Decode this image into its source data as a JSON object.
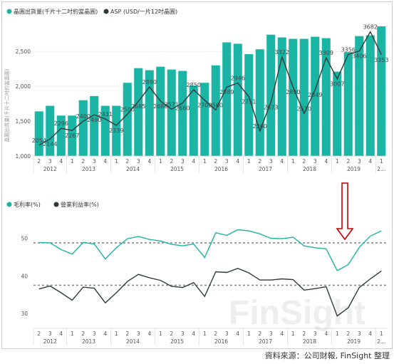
{
  "colors": {
    "bar": "#1bb5a5",
    "asp_line": "#2f3b3b",
    "gross": "#1bb5a5",
    "operating": "#2f3b3b",
    "ref_line": "#888888",
    "arrow": "#cc0000"
  },
  "quarters": [
    "2",
    "3",
    "4",
    "1",
    "2",
    "3",
    "4",
    "1",
    "2",
    "3",
    "4",
    "1",
    "2",
    "3",
    "4",
    "1",
    "2",
    "3",
    "4",
    "1",
    "2",
    "3",
    "4",
    "1",
    "2",
    "3",
    "4",
    "1",
    "2",
    "3",
    "4",
    "1"
  ],
  "years": [
    {
      "label": "2012",
      "start": 0,
      "end": 2
    },
    {
      "label": "2013",
      "start": 3,
      "end": 6
    },
    {
      "label": "2014",
      "start": 7,
      "end": 10
    },
    {
      "label": "2015",
      "start": 11,
      "end": 14
    },
    {
      "label": "2016",
      "start": 15,
      "end": 18
    },
    {
      "label": "2017",
      "start": 19,
      "end": 22
    },
    {
      "label": "2018",
      "start": 23,
      "end": 26
    },
    {
      "label": "2019",
      "start": 27,
      "end": 30
    },
    {
      "label": "2...",
      "start": 31,
      "end": 31
    }
  ],
  "watermark": "FinSight",
  "source_text": "資料來源：公司財報, FinSight 整理",
  "chart_data": [
    {
      "type": "bar",
      "legend": [
        "晶圓出貨量(千片十二吋約當晶圓)",
        "ASP (USD/一片12吋晶圓)"
      ],
      "ylabel": "晶圓出貨量(千片十二吋約當晶圓)",
      "ylim": [
        1000,
        2900
      ],
      "yticks": [
        1000,
        1500,
        2000,
        2500
      ],
      "ytick_labels": [
        "1,000",
        "1,500",
        "2,000",
        "2,500"
      ],
      "bar_values": [
        1640,
        1720,
        1580,
        1580,
        1800,
        1860,
        1720,
        1720,
        2050,
        2260,
        2230,
        2280,
        2240,
        2220,
        2010,
        2050,
        2300,
        2630,
        2610,
        2460,
        2530,
        2740,
        2700,
        2680,
        2680,
        2710,
        2690,
        2210,
        2490,
        2720,
        2730,
        2860
      ],
      "asp_values": [
        2054,
        2144,
        2296,
        2267,
        2400,
        2490,
        2431,
        2339,
        2500,
        2685,
        2890,
        2688,
        2571,
        2660,
        2850,
        2700,
        2560,
        2889,
        2946,
        2751,
        2260,
        2673,
        3322,
        2890,
        2510,
        2849,
        3309,
        3007,
        3356,
        3406,
        3682,
        3353
      ],
      "asp_labels": [
        "2054",
        "2144",
        "2296",
        "2267",
        "2400",
        "2490",
        "2431",
        "2339",
        "2500",
        "2685",
        "2890",
        "2688",
        "2571",
        "2660",
        "2850",
        "2700",
        "2560",
        "2889",
        "2946",
        "2751",
        "2260",
        "2673",
        "3322",
        "2890",
        "2510",
        "2849",
        "3309",
        "3007",
        "3356",
        "3406",
        "3682",
        "3353"
      ]
    },
    {
      "type": "line",
      "legend": [
        "毛利率(%)",
        "營業利益率(%)"
      ],
      "ylim": [
        26,
        56
      ],
      "yticks": [
        30,
        40,
        50
      ],
      "ytick_labels": [
        "30",
        "40",
        "50"
      ],
      "ref_lines": [
        48.8,
        37.5
      ],
      "series": [
        {
          "name": "毛利率(%)",
          "values": [
            48.9,
            48.8,
            47.0,
            45.8,
            48.9,
            48.5,
            44.5,
            47.5,
            49.9,
            50.5,
            49.7,
            49.3,
            48.4,
            48.0,
            48.5,
            44.9,
            51.5,
            50.8,
            52.3,
            52.0,
            51.2,
            50.0,
            49.9,
            50.3,
            48.0,
            47.5,
            47.2,
            41.4,
            43.0,
            47.6,
            50.6,
            52.0
          ]
        },
        {
          "name": "營業利益率(%)",
          "values": [
            36.5,
            37.3,
            35.5,
            33.5,
            37.0,
            36.7,
            32.8,
            35.5,
            38.5,
            40.4,
            39.5,
            38.8,
            37.2,
            36.9,
            38.2,
            34.5,
            41.1,
            40.9,
            42.0,
            40.8,
            38.9,
            38.9,
            39.2,
            39.0,
            36.2,
            36.6,
            37.1,
            29.3,
            31.5,
            36.9,
            39.2,
            41.3
          ]
        }
      ]
    }
  ]
}
